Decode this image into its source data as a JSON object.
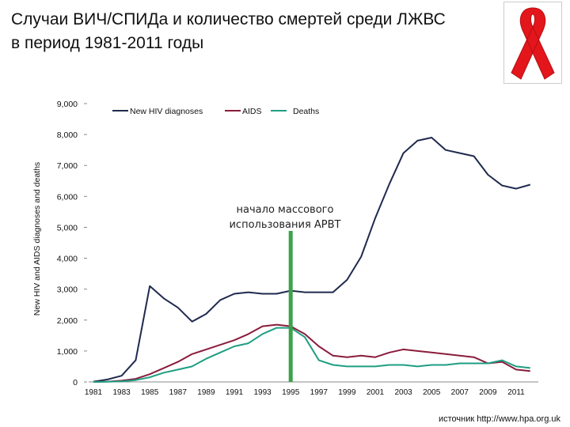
{
  "title": "Случаи ВИЧ/СПИДа и количество смертей среди ЛЖВС в период 1981-2011 годы",
  "source": "источник http://www.hpa.org.uk",
  "icons": {
    "ribbon": "red-ribbon-icon"
  },
  "colors": {
    "new_hiv": "#1f2a4e",
    "aids": "#8a1c3c",
    "deaths": "#1e9e82",
    "marker": "#3aa34a",
    "ribbon": "#e3161b"
  },
  "chart_data": {
    "type": "line",
    "title": "",
    "xlabel": "",
    "ylabel": "New HIV and AIDS diagnoses and deaths",
    "xlim": [
      1981,
      2011
    ],
    "ylim": [
      0,
      9000
    ],
    "xticks": [
      "1981",
      "1983",
      "1985",
      "1987",
      "1989",
      "1991",
      "1993",
      "1995",
      "1997",
      "1999",
      "2001",
      "2003",
      "2005",
      "2007",
      "2009",
      "2011"
    ],
    "yticks": [
      "0",
      "1,000",
      "2,000",
      "3,000",
      "4,000",
      "5,000",
      "6,000",
      "7,000",
      "8,000",
      "9,000"
    ],
    "grid": false,
    "legend": "top",
    "x": [
      1981,
      1982,
      1983,
      1984,
      1985,
      1986,
      1987,
      1988,
      1989,
      1990,
      1991,
      1992,
      1993,
      1994,
      1995,
      1996,
      1997,
      1998,
      1999,
      2000,
      2001,
      2002,
      2003,
      2004,
      2005,
      2006,
      2007,
      2008,
      2009,
      2010,
      2011,
      2012
    ],
    "series": [
      {
        "name": "New HIV diagnoses",
        "values": [
          10,
          80,
          200,
          700,
          3100,
          2700,
          2400,
          1950,
          2200,
          2650,
          2850,
          2900,
          2850,
          2850,
          2950,
          2900,
          2900,
          2900,
          3300,
          4050,
          5300,
          6400,
          7400,
          7800,
          7900,
          7500,
          7400,
          7300,
          6700,
          6350,
          6250,
          6380
        ]
      },
      {
        "name": "AIDS",
        "values": [
          0,
          10,
          40,
          100,
          250,
          450,
          650,
          900,
          1050,
          1200,
          1350,
          1550,
          1800,
          1850,
          1800,
          1550,
          1150,
          850,
          800,
          850,
          800,
          950,
          1050,
          1000,
          950,
          900,
          850,
          800,
          600,
          650,
          400,
          350
        ]
      },
      {
        "name": "Deaths",
        "values": [
          0,
          5,
          20,
          60,
          150,
          300,
          400,
          500,
          750,
          950,
          1150,
          1250,
          1550,
          1750,
          1750,
          1450,
          700,
          550,
          500,
          500,
          500,
          550,
          550,
          500,
          550,
          550,
          600,
          600,
          600,
          700,
          500,
          450
        ]
      }
    ],
    "annotations": [
      {
        "text": "начало массового использования АРВТ",
        "x": 1995
      }
    ]
  }
}
